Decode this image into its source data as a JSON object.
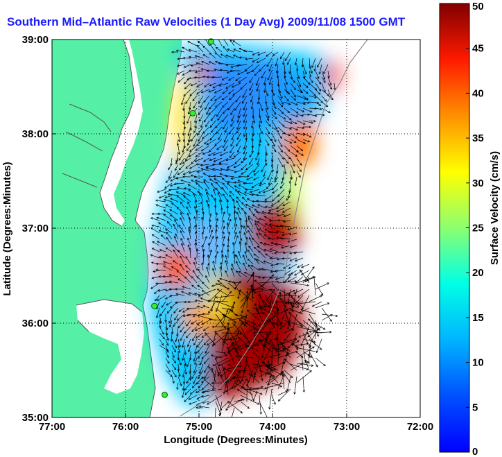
{
  "title": "Southern Mid–Atlantic Raw Velocities (1 Day Avg) 2009/11/08 1500 GMT",
  "map": {
    "xlabel": "Longitude (Degrees:Minutes)",
    "ylabel": "Latitude (Degrees:Minutes)",
    "x_ticks": [
      "77:00",
      "76:00",
      "75:00",
      "74:00",
      "73:00",
      "72:00"
    ],
    "y_ticks": [
      "39:00",
      "38:00",
      "37:00",
      "36:00",
      "35:00"
    ],
    "lon_range": [
      -77,
      -72
    ],
    "lat_range": [
      35,
      39
    ],
    "grid": "dotted",
    "land_color": "#55f0a6",
    "water_color": "#ffffff"
  },
  "colorbar": {
    "label": "Surface Velocity (cm/s)",
    "min": 0,
    "max": 50,
    "ticks": [
      "0",
      "5",
      "10",
      "15",
      "20",
      "25",
      "30",
      "35",
      "40",
      "45",
      "50"
    ],
    "colormap": "jet"
  },
  "stations": [
    {
      "lon": -74.84,
      "lat": 38.98
    },
    {
      "lon": -75.09,
      "lat": 38.22
    },
    {
      "lon": -75.61,
      "lat": 36.18
    },
    {
      "lon": -75.47,
      "lat": 35.24
    }
  ]
}
